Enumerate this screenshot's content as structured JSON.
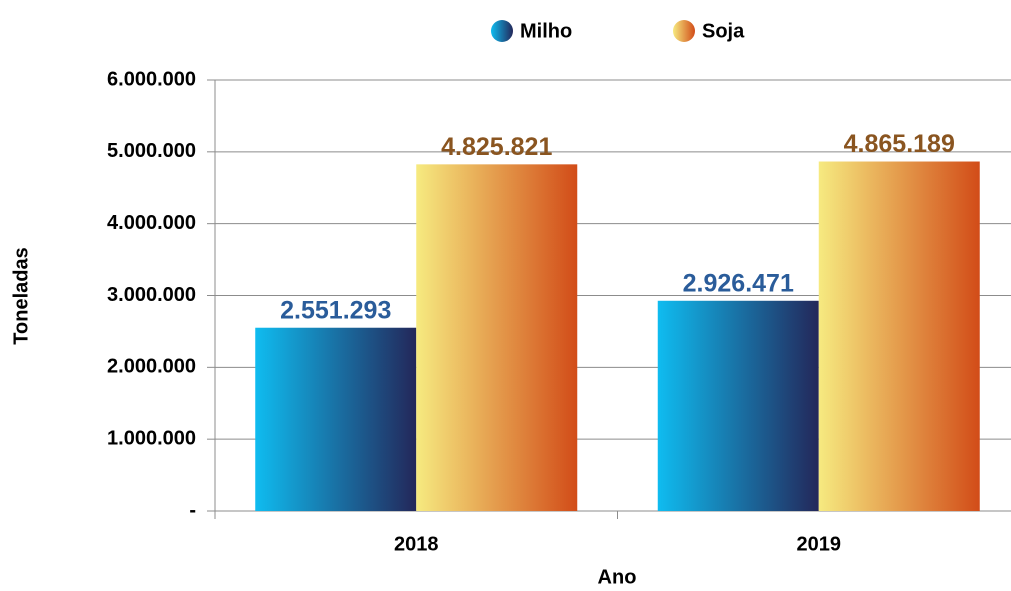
{
  "chart_data": {
    "type": "bar",
    "categories": [
      "2018",
      "2019"
    ],
    "series": [
      {
        "name": "Milho",
        "color": "#1f6fb0",
        "gradient": [
          "#0fbcf0",
          "#23275a"
        ],
        "label_color": "#2a5c9a",
        "values": [
          2551293,
          2926471
        ],
        "value_labels": [
          "2.551.293",
          "2.926.471"
        ]
      },
      {
        "name": "Soja",
        "color": "#e89a4a",
        "gradient": [
          "#f6ea80",
          "#d24c18"
        ],
        "label_color": "#8a5520",
        "values": [
          4825821,
          4865189
        ],
        "value_labels": [
          "4.825.821",
          "4.865.189"
        ]
      }
    ],
    "ylim": [
      0,
      6000000
    ],
    "yticks": [
      {
        "value": 0,
        "label": "-"
      },
      {
        "value": 1000000,
        "label": "1.000.000"
      },
      {
        "value": 2000000,
        "label": "2.000.000"
      },
      {
        "value": 3000000,
        "label": "3.000.000"
      },
      {
        "value": 4000000,
        "label": "4.000.000"
      },
      {
        "value": 5000000,
        "label": "5.000.000"
      },
      {
        "value": 6000000,
        "label": "6.000.000"
      }
    ],
    "x_label": "Ano",
    "y_label": "Toneladas",
    "grid": true,
    "legend": "top"
  }
}
